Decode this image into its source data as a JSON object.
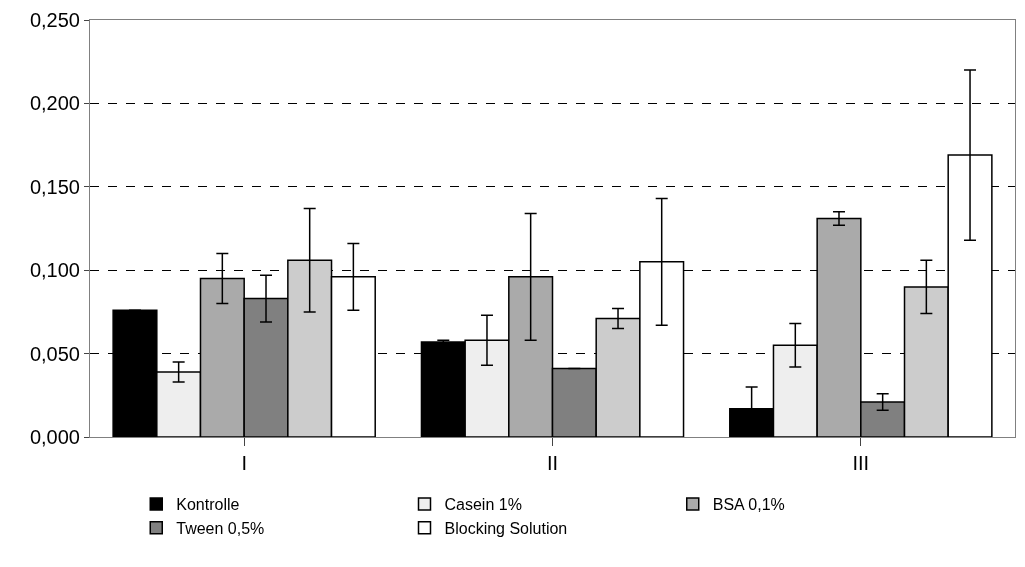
{
  "chart_data": {
    "type": "bar",
    "categories": [
      "I",
      "II",
      "III"
    ],
    "series": [
      {
        "name": "Kontrolle",
        "color": "#000000",
        "values": [
          0.076,
          0.057,
          0.017
        ],
        "errors": [
          null,
          0.001,
          0.013
        ]
      },
      {
        "name": "Casein 1%",
        "color": "#eeeeee",
        "values": [
          0.039,
          0.058,
          0.055
        ],
        "errors": [
          0.006,
          0.015,
          0.013
        ]
      },
      {
        "name": "BSA 0,1%",
        "color": "#aaaaaa",
        "values": [
          0.095,
          0.096,
          0.131
        ],
        "errors": [
          0.015,
          0.038,
          0.004
        ]
      },
      {
        "name": "Tween 0,5%",
        "color": "#808080",
        "values": [
          0.083,
          0.041,
          0.021
        ],
        "errors": [
          0.014,
          null,
          0.005
        ]
      },
      {
        "color": "#cccccc",
        "values": [
          0.106,
          0.071,
          0.09
        ],
        "errors": [
          0.031,
          0.006,
          0.016
        ]
      },
      {
        "name": "Blocking Solution",
        "color": "#ffffff",
        "values": [
          0.096,
          0.105,
          0.169
        ],
        "errors": [
          0.02,
          0.038,
          0.051
        ]
      }
    ],
    "ylim": [
      0,
      0.25
    ],
    "yticks": [
      {
        "value": 0,
        "label": "0,000"
      },
      {
        "value": 0.05,
        "label": "0,050"
      },
      {
        "value": 0.1,
        "label": "0,100"
      },
      {
        "value": 0.15,
        "label": "0,150"
      },
      {
        "value": 0.2,
        "label": "0,200"
      },
      {
        "value": 0.25,
        "label": "0,250"
      }
    ],
    "grid": "y",
    "legend": "bottom"
  }
}
